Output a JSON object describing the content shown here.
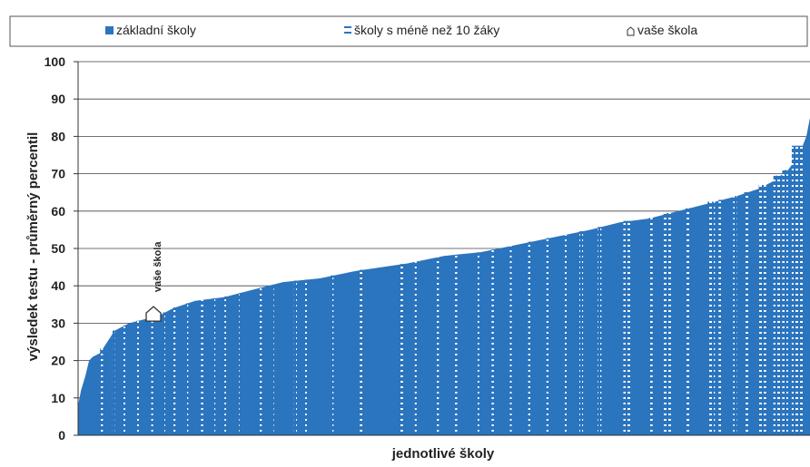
{
  "legend": {
    "items": [
      {
        "label": "základní školy",
        "symbol": "square",
        "color": "#2b74be"
      },
      {
        "label": "školy s méně než 10 žáky",
        "symbol": "striped",
        "color": "#2b74be"
      },
      {
        "label": "vaše škola",
        "symbol": "house-icon",
        "color": "#ffffff"
      }
    ]
  },
  "chart_data": {
    "type": "bar",
    "title": "",
    "xlabel": "jednotlivé školy",
    "ylabel": "výsledek testu - průměrný percentil",
    "ylim": [
      0,
      100
    ],
    "yticks": [
      0,
      10,
      20,
      30,
      40,
      50,
      60,
      70,
      80,
      90,
      100
    ],
    "grid": true,
    "legend_placement": "top",
    "bar_color": "#2b74be",
    "curve": [
      [
        0,
        8
      ],
      [
        0.004,
        12
      ],
      [
        0.01,
        16
      ],
      [
        0.015,
        20
      ],
      [
        0.02,
        21
      ],
      [
        0.03,
        22
      ],
      [
        0.04,
        25
      ],
      [
        0.05,
        28
      ],
      [
        0.07,
        30
      ],
      [
        0.09,
        31
      ],
      [
        0.11,
        32
      ],
      [
        0.13,
        34
      ],
      [
        0.16,
        36
      ],
      [
        0.2,
        37
      ],
      [
        0.24,
        39
      ],
      [
        0.28,
        41
      ],
      [
        0.33,
        42
      ],
      [
        0.38,
        44
      ],
      [
        0.45,
        46
      ],
      [
        0.5,
        48
      ],
      [
        0.55,
        49
      ],
      [
        0.6,
        51
      ],
      [
        0.65,
        53
      ],
      [
        0.7,
        55
      ],
      [
        0.74,
        57
      ],
      [
        0.78,
        58
      ],
      [
        0.82,
        60
      ],
      [
        0.86,
        62
      ],
      [
        0.9,
        64
      ],
      [
        0.93,
        66
      ],
      [
        0.95,
        68
      ],
      [
        0.97,
        71
      ],
      [
        0.985,
        75
      ],
      [
        0.995,
        80
      ],
      [
        1,
        85
      ]
    ],
    "small_school_bands": [
      [
        0.03,
        0.034
      ],
      [
        0.047,
        0.05
      ],
      [
        0.062,
        0.064
      ],
      [
        0.08,
        0.083
      ],
      [
        0.1,
        0.102
      ],
      [
        0.116,
        0.119
      ],
      [
        0.13,
        0.133
      ],
      [
        0.148,
        0.15
      ],
      [
        0.168,
        0.171
      ],
      [
        0.185,
        0.187
      ],
      [
        0.2,
        0.203
      ],
      [
        0.22,
        0.222
      ],
      [
        0.248,
        0.251
      ],
      [
        0.265,
        0.267
      ],
      [
        0.295,
        0.299
      ],
      [
        0.31,
        0.312
      ],
      [
        0.345,
        0.349
      ],
      [
        0.385,
        0.39
      ],
      [
        0.44,
        0.444
      ],
      [
        0.46,
        0.462
      ],
      [
        0.49,
        0.493
      ],
      [
        0.515,
        0.518
      ],
      [
        0.545,
        0.548
      ],
      [
        0.565,
        0.568
      ],
      [
        0.59,
        0.592
      ],
      [
        0.615,
        0.62
      ],
      [
        0.64,
        0.645
      ],
      [
        0.665,
        0.667
      ],
      [
        0.685,
        0.69
      ],
      [
        0.71,
        0.715
      ],
      [
        0.745,
        0.755
      ],
      [
        0.78,
        0.785
      ],
      [
        0.8,
        0.81
      ],
      [
        0.83,
        0.836
      ],
      [
        0.86,
        0.87
      ],
      [
        0.875,
        0.88
      ],
      [
        0.895,
        0.9
      ],
      [
        0.91,
        0.916
      ],
      [
        0.93,
        0.94
      ],
      [
        0.95,
        0.96
      ],
      [
        0.962,
        0.97
      ],
      [
        0.975,
        0.99
      ]
    ],
    "your_school": {
      "x": 0.103,
      "y": 32,
      "label": "vaše škola"
    }
  }
}
